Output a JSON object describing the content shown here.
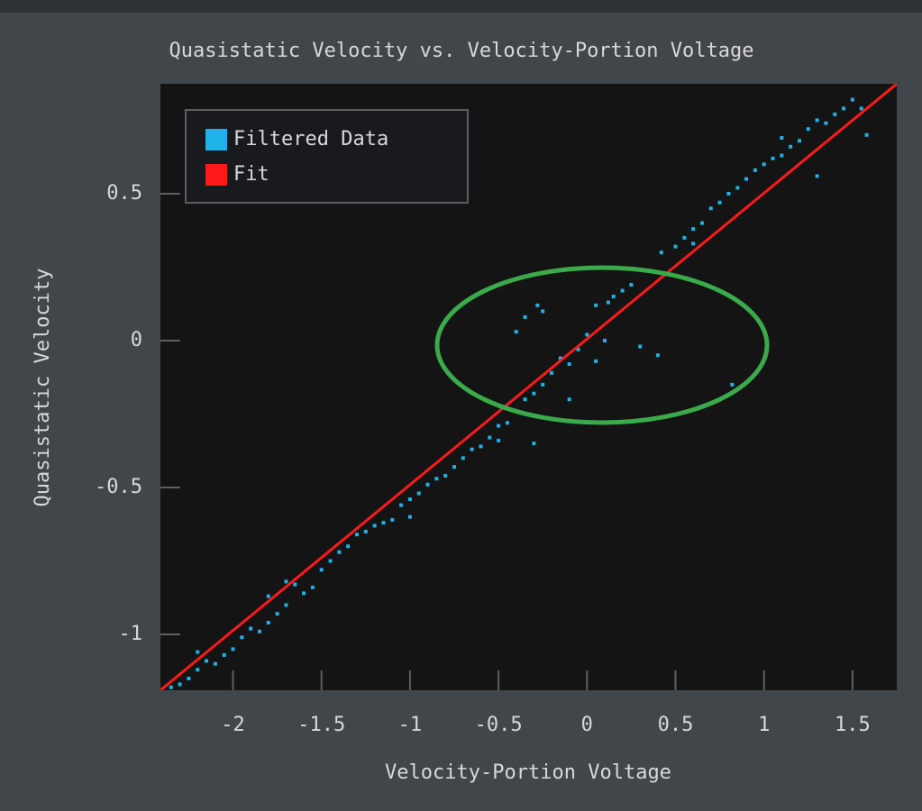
{
  "chart_data": {
    "type": "scatter",
    "title": "Quasistatic Velocity vs. Velocity-Portion Voltage",
    "xlabel": "Velocity-Portion Voltage",
    "ylabel": "Quasistatic Velocity",
    "xlim": [
      -2.41,
      1.75
    ],
    "ylim": [
      -1.19,
      0.874
    ],
    "xticks": [
      -2,
      -1.5,
      -1,
      -0.5,
      0,
      0.5,
      1,
      1.5
    ],
    "yticks": [
      -1,
      -0.5,
      0,
      0.5
    ],
    "legend": "upper left",
    "series": [
      {
        "name": "Filtered Data",
        "type": "scatter",
        "color": "#1fb2e8",
        "x": [
          -2.35,
          -2.3,
          -2.25,
          -2.2,
          -2.15,
          -2.1,
          -2.05,
          -2.0,
          -1.95,
          -1.9,
          -1.85,
          -1.8,
          -1.75,
          -1.7,
          -1.7,
          -1.65,
          -1.6,
          -1.55,
          -1.5,
          -1.45,
          -1.4,
          -1.35,
          -1.3,
          -1.25,
          -1.2,
          -1.15,
          -1.1,
          -1.05,
          -1.0,
          -0.95,
          -0.9,
          -0.85,
          -0.8,
          -0.75,
          -0.7,
          -0.65,
          -0.6,
          -0.55,
          -0.5,
          -0.45,
          -0.4,
          -0.35,
          -0.3,
          -0.28,
          -0.25,
          -0.2,
          -0.15,
          -0.1,
          -0.05,
          0.0,
          0.05,
          0.1,
          0.12,
          0.15,
          0.2,
          0.25,
          0.3,
          0.4,
          0.42,
          0.5,
          0.55,
          0.6,
          0.65,
          0.7,
          0.75,
          0.8,
          0.85,
          0.82,
          0.9,
          0.95,
          1.0,
          1.05,
          1.1,
          1.15,
          1.2,
          1.25,
          1.3,
          1.35,
          1.4,
          1.45,
          1.5,
          1.55,
          1.58,
          -0.4,
          -0.35,
          -0.25,
          -0.1,
          0.05,
          -0.5,
          -1.8,
          -2.2,
          -1.0,
          -0.3,
          1.3,
          0.6,
          1.1
        ],
        "values": [
          -1.18,
          -1.17,
          -1.15,
          -1.12,
          -1.09,
          -1.1,
          -1.07,
          -1.05,
          -1.01,
          -0.98,
          -0.99,
          -0.96,
          -0.93,
          -0.9,
          -0.82,
          -0.83,
          -0.86,
          -0.84,
          -0.78,
          -0.75,
          -0.72,
          -0.7,
          -0.66,
          -0.65,
          -0.63,
          -0.62,
          -0.61,
          -0.56,
          -0.54,
          -0.52,
          -0.49,
          -0.47,
          -0.46,
          -0.43,
          -0.4,
          -0.37,
          -0.36,
          -0.33,
          -0.29,
          -0.28,
          -0.24,
          -0.2,
          -0.18,
          0.12,
          -0.15,
          -0.11,
          -0.06,
          -0.08,
          -0.03,
          0.02,
          -0.07,
          0.0,
          0.13,
          0.15,
          0.17,
          0.19,
          -0.02,
          -0.05,
          0.3,
          0.32,
          0.35,
          0.38,
          0.4,
          0.45,
          0.47,
          0.5,
          0.52,
          -0.15,
          0.55,
          0.58,
          0.6,
          0.62,
          0.63,
          0.66,
          0.68,
          0.72,
          0.75,
          0.74,
          0.77,
          0.79,
          0.82,
          0.79,
          0.7,
          0.03,
          0.08,
          0.1,
          -0.2,
          0.12,
          -0.34,
          -0.87,
          -1.06,
          -0.6,
          -0.35,
          0.56,
          0.33,
          0.69
        ]
      },
      {
        "name": "Fit",
        "type": "line",
        "color": "#ff1a1a",
        "x": [
          -2.41,
          1.75
        ],
        "values": [
          -1.19,
          0.874
        ]
      }
    ]
  }
}
